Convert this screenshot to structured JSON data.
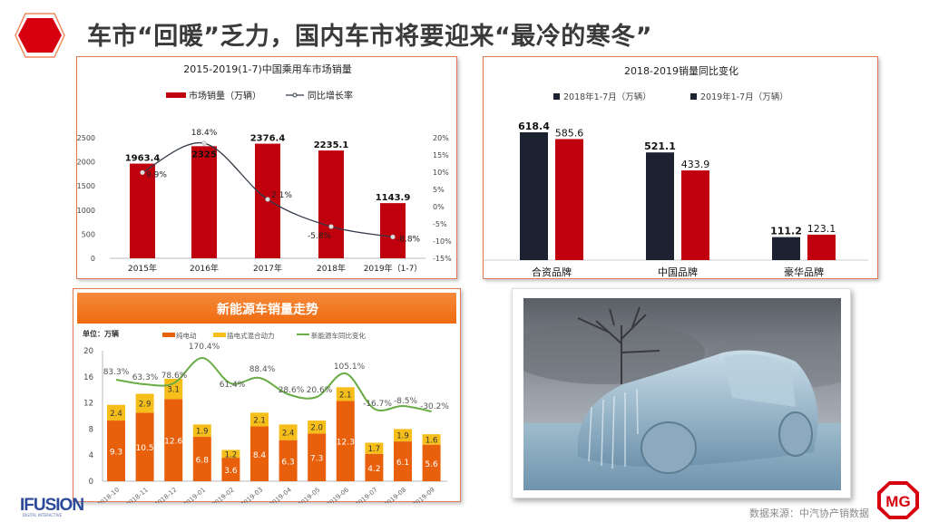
{
  "header": {
    "title": "车市“回暖”乏力，国内车市将要迎来“最冷的寒冬”",
    "accent_color": "#d7000f"
  },
  "chart_data": [
    {
      "type": "bar+line",
      "title": "2015-2019(1-7)中国乘用车市场销量",
      "legend": [
        "市场销量（万辆）",
        "同比增长率"
      ],
      "categories": [
        "2015年",
        "2016年",
        "2017年",
        "2018年",
        "2019年（1-7）"
      ],
      "series": [
        {
          "name": "市场销量（万辆）",
          "type": "bar",
          "axis": "left",
          "values": [
            1963.4,
            2325,
            2376.4,
            2235.1,
            1143.9
          ],
          "color": "#c0000d"
        },
        {
          "name": "同比增长率",
          "type": "line",
          "axis": "right",
          "values": [
            9.9,
            18.4,
            2.1,
            -5.8,
            -8.8
          ],
          "labels": [
            "9.9%",
            "18.4%",
            "2.1%",
            "-5.8%",
            "-8.8%"
          ],
          "color": "#333a4a"
        }
      ],
      "left_axis": {
        "ticks": [
          "0",
          "500",
          "1000",
          "1500",
          "2000",
          "2500"
        ],
        "range": [
          0,
          2500
        ]
      },
      "right_axis": {
        "ticks": [
          "-15%",
          "-10%",
          "-5%",
          "0%",
          "5%",
          "10%",
          "15%",
          "20%"
        ],
        "range": [
          -15,
          20
        ]
      },
      "grid": false
    },
    {
      "type": "bar",
      "title": "2018-2019销量同比变化",
      "legend": [
        "2018年1-7月（万辆）",
        "2019年1-7月（万辆）"
      ],
      "categories": [
        "合资品牌",
        "中国品牌",
        "豪华品牌"
      ],
      "series": [
        {
          "name": "2018年1-7月（万辆）",
          "values": [
            618.4,
            521.1,
            111.2
          ],
          "color": "#1c2230"
        },
        {
          "name": "2019年1-7月（万辆）",
          "values": [
            585.6,
            433.9,
            123.1
          ],
          "color": "#c0000d"
        }
      ],
      "grid": false
    },
    {
      "type": "stacked bar+line",
      "title": "新能源车销量走势",
      "unit_label": "单位：万辆",
      "legend": [
        "纯电动",
        "插电式混合动力",
        "新能源车同比变化"
      ],
      "categories": [
        "2018-10",
        "2018-11",
        "2018-12",
        "2019-01",
        "2019-02",
        "2019-03",
        "2019-04",
        "2019-05",
        "2019-06",
        "2019-07",
        "2019-08",
        "2019-09"
      ],
      "series": [
        {
          "name": "纯电动",
          "type": "bar",
          "values": [
            9.3,
            10.5,
            12.6,
            6.8,
            3.6,
            8.4,
            6.3,
            7.3,
            12.3,
            4.2,
            6.1,
            5.6
          ],
          "color": "#e8600c"
        },
        {
          "name": "插电式混合动力",
          "type": "bar",
          "values": [
            2.4,
            2.9,
            3.1,
            1.9,
            1.2,
            2.1,
            2.4,
            2.0,
            2.1,
            1.7,
            1.9,
            1.6
          ],
          "color": "#f5be1a"
        },
        {
          "name": "新能源车同比变化",
          "type": "line",
          "values": [
            83.3,
            63.3,
            78.6,
            170.4,
            61.4,
            88.4,
            28.6,
            20.6,
            105.1,
            -16.7,
            -8.5,
            -30.2
          ],
          "labels": [
            "83.3%",
            "63.3%",
            "78.6%",
            "170.4%",
            "61.4%",
            "88.4%",
            "28.6%",
            "20.6%",
            "105.1%",
            "-16.7%",
            "-8.5%",
            "-30.2%"
          ],
          "color": "#6aac46"
        }
      ],
      "y_axis": {
        "ticks": [
          "0",
          "4",
          "8",
          "12",
          "16",
          "20"
        ],
        "range": [
          0,
          20
        ]
      },
      "header_color": "#f07020"
    }
  ],
  "footer": {
    "left_logo": "IFUSION",
    "left_logo_sub": "DIGITAL INTERACTIVE",
    "source": "数据来源：中汽协产销数据",
    "right_logo": "MG"
  },
  "photo": {
    "subject": "frozen-car-image"
  }
}
